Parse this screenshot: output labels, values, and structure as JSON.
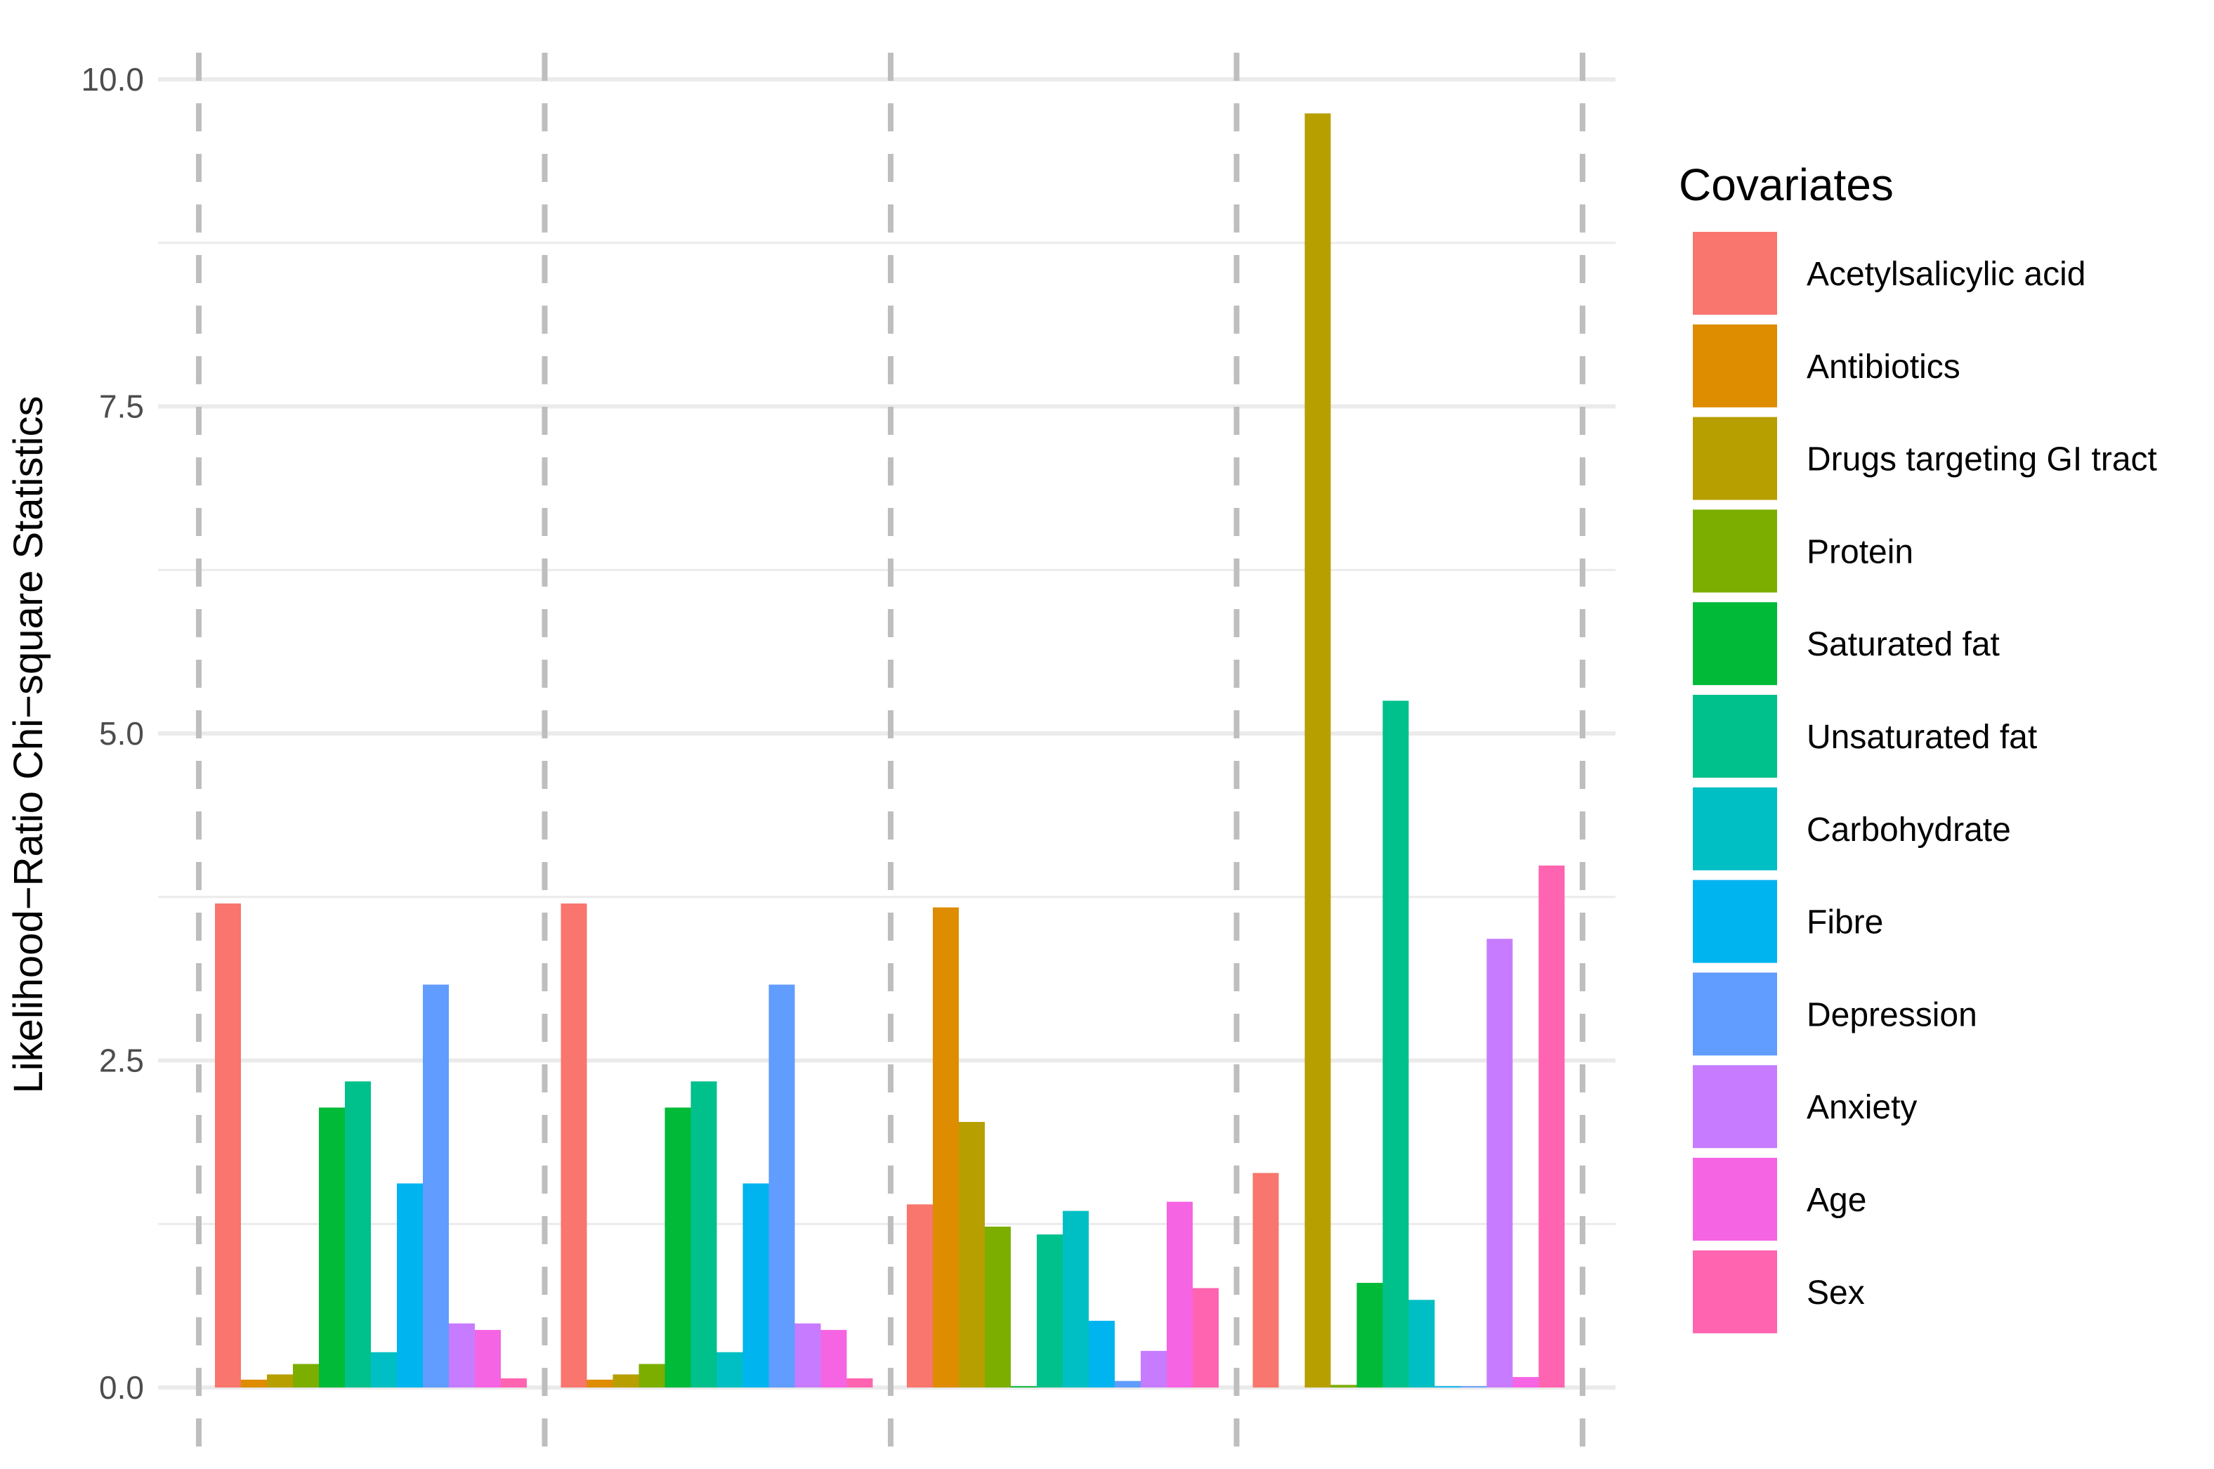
{
  "chart_data": {
    "type": "bar",
    "title": "",
    "xlabel": "",
    "ylabel": "Likelihood−Ratio Chi−square Statistics",
    "ylim": [
      0,
      10
    ],
    "y_ticks": [
      "0.0",
      "2.5",
      "5.0",
      "7.5",
      "10.0"
    ],
    "grid": true,
    "legend_position": "right",
    "legend_title": "Covariates",
    "groups": 4,
    "series": [
      {
        "name": "Acetylsalicylic acid",
        "color": "#F8766D",
        "values": [
          3.7,
          3.7,
          1.4,
          1.64
        ]
      },
      {
        "name": "Antibiotics",
        "color": "#DE8C00",
        "values": [
          0.06,
          0.06,
          3.67,
          0.0
        ]
      },
      {
        "name": "Drugs targeting GI tract",
        "color": "#B79F00",
        "values": [
          0.1,
          0.1,
          2.03,
          9.74
        ]
      },
      {
        "name": "Protein",
        "color": "#7CAE00",
        "values": [
          0.18,
          0.18,
          1.23,
          0.02
        ]
      },
      {
        "name": "Saturated fat",
        "color": "#00BA38",
        "values": [
          2.14,
          2.14,
          0.01,
          0.8
        ]
      },
      {
        "name": "Unsaturated fat",
        "color": "#00C08B",
        "values": [
          2.34,
          2.34,
          1.17,
          5.25
        ]
      },
      {
        "name": "Carbohydrate",
        "color": "#00BFC4",
        "values": [
          0.27,
          0.27,
          1.35,
          0.67
        ]
      },
      {
        "name": "Fibre",
        "color": "#00B4F0",
        "values": [
          1.56,
          1.56,
          0.51,
          0.01
        ]
      },
      {
        "name": "Depression",
        "color": "#619CFF",
        "values": [
          3.08,
          3.08,
          0.05,
          0.01
        ]
      },
      {
        "name": "Anxiety",
        "color": "#C77CFF",
        "values": [
          0.49,
          0.49,
          0.28,
          3.43
        ]
      },
      {
        "name": "Age",
        "color": "#F564E3",
        "values": [
          0.44,
          0.44,
          1.42,
          0.08
        ]
      },
      {
        "name": "Sex",
        "color": "#FF64B0",
        "values": [
          0.07,
          0.07,
          0.76,
          3.99
        ]
      }
    ]
  }
}
